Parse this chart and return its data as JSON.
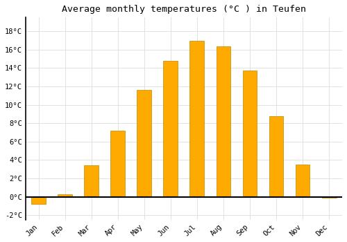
{
  "title": "Average monthly temperatures (°C ) in Teufen",
  "months": [
    "Jan",
    "Feb",
    "Mar",
    "Apr",
    "May",
    "Jun",
    "Jul",
    "Aug",
    "Sep",
    "Oct",
    "Nov",
    "Dec"
  ],
  "values": [
    -0.8,
    0.3,
    3.4,
    7.2,
    11.6,
    14.8,
    17.0,
    16.4,
    13.7,
    8.8,
    3.5,
    -0.1
  ],
  "bar_color": "#FFAA00",
  "bar_edge_color": "#BB8800",
  "background_color": "#FFFFFF",
  "grid_color": "#DDDDDD",
  "ylim": [
    -2.5,
    19.5
  ],
  "yticks": [
    -2,
    0,
    2,
    4,
    6,
    8,
    10,
    12,
    14,
    16,
    18
  ],
  "title_fontsize": 9.5,
  "tick_fontsize": 7.5,
  "axis_line_color": "#000000",
  "bar_width": 0.55
}
